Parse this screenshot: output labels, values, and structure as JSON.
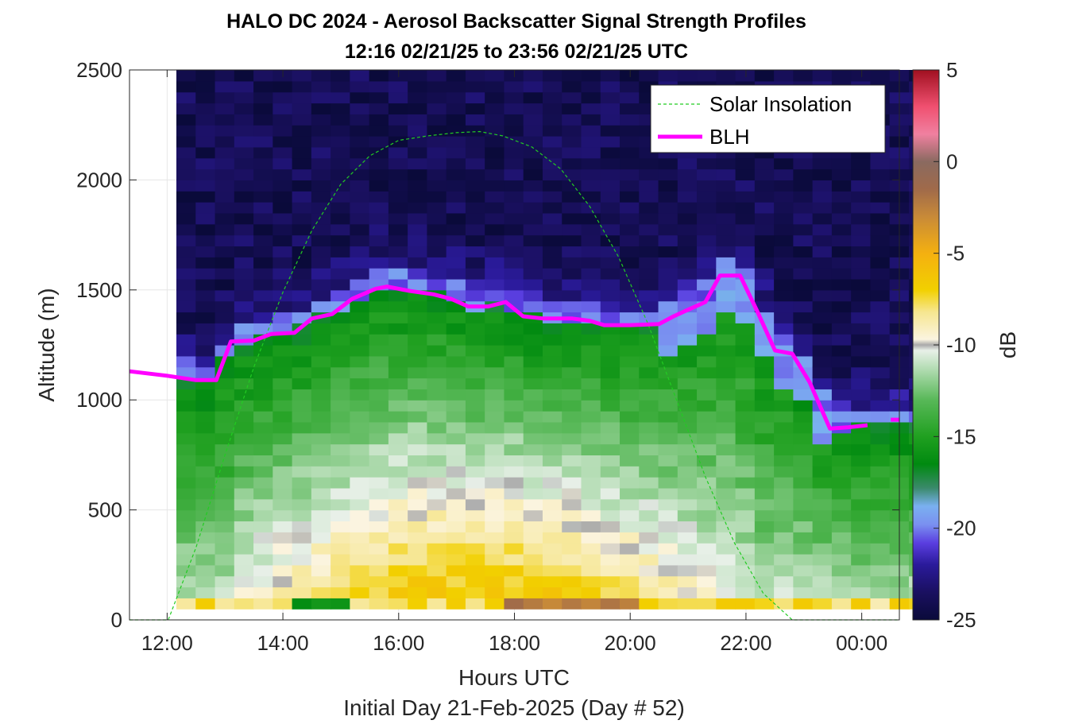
{
  "chart_data": {
    "type": "heatmap",
    "title": "HALO DC 2024 - Aerosol Backscatter Signal Strength Profiles",
    "subtitle": "12:16 02/21/25 to 23:56 02/21/25  UTC",
    "xlabel": "Hours UTC",
    "xlabel2": "Initial Day 21-Feb-2025 (Day # 52)",
    "ylabel": "Altitude (m)",
    "xlim_hours": [
      11.35,
      24.65
    ],
    "ylim": [
      0,
      2500
    ],
    "x_ticks": [
      {
        "value": 12,
        "label": "12:00"
      },
      {
        "value": 14,
        "label": "14:00"
      },
      {
        "value": 16,
        "label": "16:00"
      },
      {
        "value": 18,
        "label": "18:00"
      },
      {
        "value": 20,
        "label": "20:00"
      },
      {
        "value": 22,
        "label": "22:00"
      },
      {
        "value": 24,
        "label": "00:00"
      }
    ],
    "y_ticks": [
      {
        "value": 0,
        "label": "0"
      },
      {
        "value": 500,
        "label": "500"
      },
      {
        "value": 1000,
        "label": "1000"
      },
      {
        "value": 1500,
        "label": "1500"
      },
      {
        "value": 2000,
        "label": "2000"
      },
      {
        "value": 2500,
        "label": "2500"
      }
    ],
    "grid": true,
    "colorbar": {
      "label": "dB",
      "range": [
        -25,
        5
      ],
      "ticks": [
        {
          "value": 5,
          "label": "5"
        },
        {
          "value": 0,
          "label": "0"
        },
        {
          "value": -5,
          "label": "-5"
        },
        {
          "value": -10,
          "label": "-10"
        },
        {
          "value": -15,
          "label": "-15"
        },
        {
          "value": -20,
          "label": "-20"
        },
        {
          "value": -25,
          "label": "-25"
        }
      ],
      "colors": [
        {
          "value": -25,
          "color": "#0a0a3a"
        },
        {
          "value": -23.5,
          "color": "#1a1060"
        },
        {
          "value": -22,
          "color": "#2a1a9a"
        },
        {
          "value": -20.8,
          "color": "#5a3ee0"
        },
        {
          "value": -19.8,
          "color": "#7a90f0"
        },
        {
          "value": -18.8,
          "color": "#7ab0f0"
        },
        {
          "value": -17.8,
          "color": "#3a8a6a"
        },
        {
          "value": -16.5,
          "color": "#008a10"
        },
        {
          "value": -15,
          "color": "#20a020"
        },
        {
          "value": -13,
          "color": "#58b858"
        },
        {
          "value": -11.5,
          "color": "#a8d8a8"
        },
        {
          "value": -10.3,
          "color": "#e8f0e8"
        },
        {
          "value": -10,
          "color": "#a9a9a9"
        },
        {
          "value": -9.7,
          "color": "#fbf4e0"
        },
        {
          "value": -8.2,
          "color": "#f6e690"
        },
        {
          "value": -7,
          "color": "#f2d000"
        },
        {
          "value": -5,
          "color": "#f4b010"
        },
        {
          "value": -3,
          "color": "#c88a38"
        },
        {
          "value": -1.5,
          "color": "#a06a4a"
        },
        {
          "value": 0,
          "color": "#8a6a60"
        },
        {
          "value": 1.5,
          "color": "#f080a0"
        },
        {
          "value": 3,
          "color": "#f05070"
        },
        {
          "value": 5,
          "color": "#a01020"
        }
      ]
    },
    "heatmap": {
      "x_start_hour": 12.16,
      "x_step_hour": 0.333,
      "y_bin_m": 50,
      "columns": 39,
      "data_top_m": 2500
    },
    "series": [
      {
        "name": "Solar Insolation",
        "style": "dashed",
        "color": "#22cc22",
        "points": [
          [
            11.35,
            0
          ],
          [
            12.02,
            0
          ],
          [
            12.5,
            330
          ],
          [
            13.0,
            750
          ],
          [
            13.5,
            1150
          ],
          [
            14.0,
            1490
          ],
          [
            14.5,
            1770
          ],
          [
            15.0,
            1980
          ],
          [
            15.5,
            2110
          ],
          [
            16.0,
            2180
          ],
          [
            16.5,
            2200
          ],
          [
            17.0,
            2215
          ],
          [
            17.4,
            2220
          ],
          [
            17.8,
            2200
          ],
          [
            18.3,
            2150
          ],
          [
            18.8,
            2050
          ],
          [
            19.3,
            1880
          ],
          [
            19.8,
            1650
          ],
          [
            20.3,
            1350
          ],
          [
            20.8,
            1000
          ],
          [
            21.3,
            650
          ],
          [
            21.8,
            350
          ],
          [
            22.3,
            120
          ],
          [
            22.8,
            0
          ],
          [
            24.65,
            0
          ]
        ]
      },
      {
        "name": "BLH",
        "style": "solid",
        "color": "#ff00ff",
        "points": [
          [
            11.35,
            1130
          ],
          [
            12.0,
            1110
          ],
          [
            12.5,
            1090
          ],
          [
            12.85,
            1090
          ],
          [
            13.1,
            1265
          ],
          [
            13.5,
            1270
          ],
          [
            13.8,
            1300
          ],
          [
            14.2,
            1305
          ],
          [
            14.5,
            1370
          ],
          [
            14.85,
            1390
          ],
          [
            15.2,
            1460
          ],
          [
            15.6,
            1505
          ],
          [
            15.8,
            1515
          ],
          [
            16.2,
            1495
          ],
          [
            16.6,
            1480
          ],
          [
            16.9,
            1460
          ],
          [
            17.2,
            1425
          ],
          [
            17.55,
            1425
          ],
          [
            17.85,
            1445
          ],
          [
            18.15,
            1380
          ],
          [
            18.5,
            1370
          ],
          [
            19.0,
            1370
          ],
          [
            19.3,
            1360
          ],
          [
            19.55,
            1340
          ],
          [
            20.0,
            1340
          ],
          [
            20.5,
            1345
          ],
          [
            20.75,
            1380
          ],
          [
            21.0,
            1410
          ],
          [
            21.3,
            1445
          ],
          [
            21.55,
            1565
          ],
          [
            21.9,
            1565
          ],
          [
            22.2,
            1400
          ],
          [
            22.5,
            1225
          ],
          [
            22.8,
            1210
          ],
          [
            23.1,
            1080
          ],
          [
            23.45,
            870
          ],
          [
            23.75,
            875
          ],
          [
            24.1,
            885
          ]
        ]
      }
    ],
    "extra_blh_points": [
      [
        24.5,
        910
      ],
      [
        24.65,
        910
      ]
    ],
    "legend": {
      "placement": "top-right",
      "entries": [
        "Solar Insolation",
        "BLH"
      ]
    }
  }
}
